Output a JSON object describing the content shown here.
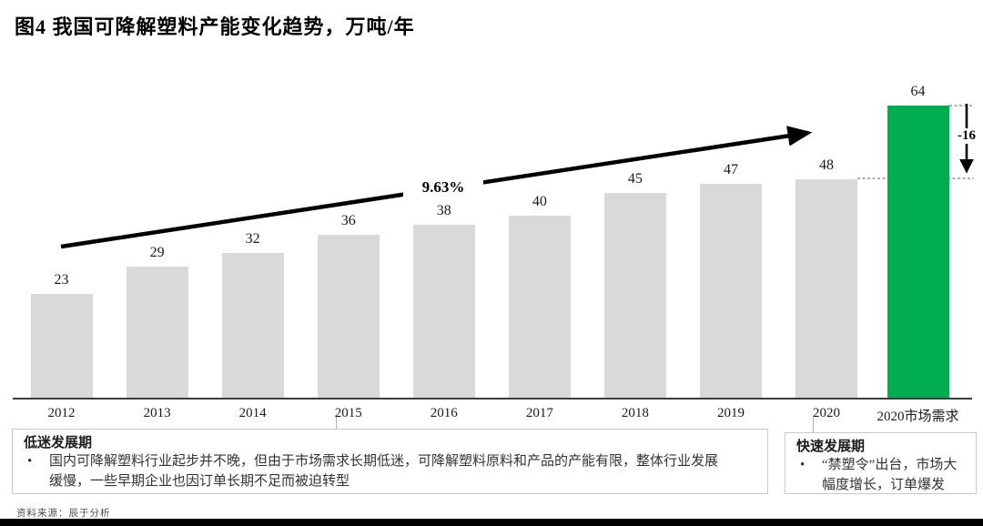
{
  "title": "图4 我国可降解塑料产能变化趋势，万吨/年",
  "chart_data": {
    "type": "bar",
    "categories": [
      "2012",
      "2013",
      "2014",
      "2015",
      "2016",
      "2017",
      "2018",
      "2019",
      "2020",
      "2020市场需求"
    ],
    "values": [
      23,
      29,
      32,
      36,
      38,
      40,
      45,
      47,
      48,
      64
    ],
    "title": "图4 我国可降解塑料产能变化趋势，万吨/年",
    "ylabel": "万吨/年",
    "ylim": [
      0,
      70
    ],
    "grid": false,
    "legend": false,
    "bar_color": "#D9D9D9",
    "highlight_color": "#00AE50",
    "highlight_index": 9,
    "annotations": {
      "cagr_label": "9.63%",
      "gap_label": "-16"
    }
  },
  "notes": {
    "bullet_marker": "•",
    "left": {
      "title": "低迷发展期",
      "bullet": "国内可降解塑料行业起步并不晚，但由于市场需求长期低迷，可降解塑料原料和产品的产能有限，整体行业发展缓慢，一些早期企业也因订单长期不足而被迫转型"
    },
    "right": {
      "title": "快速发展期",
      "bullet": "“禁塑令”出台，市场大幅度增长，订单爆发"
    }
  },
  "source": "资料来源：辰于分析"
}
